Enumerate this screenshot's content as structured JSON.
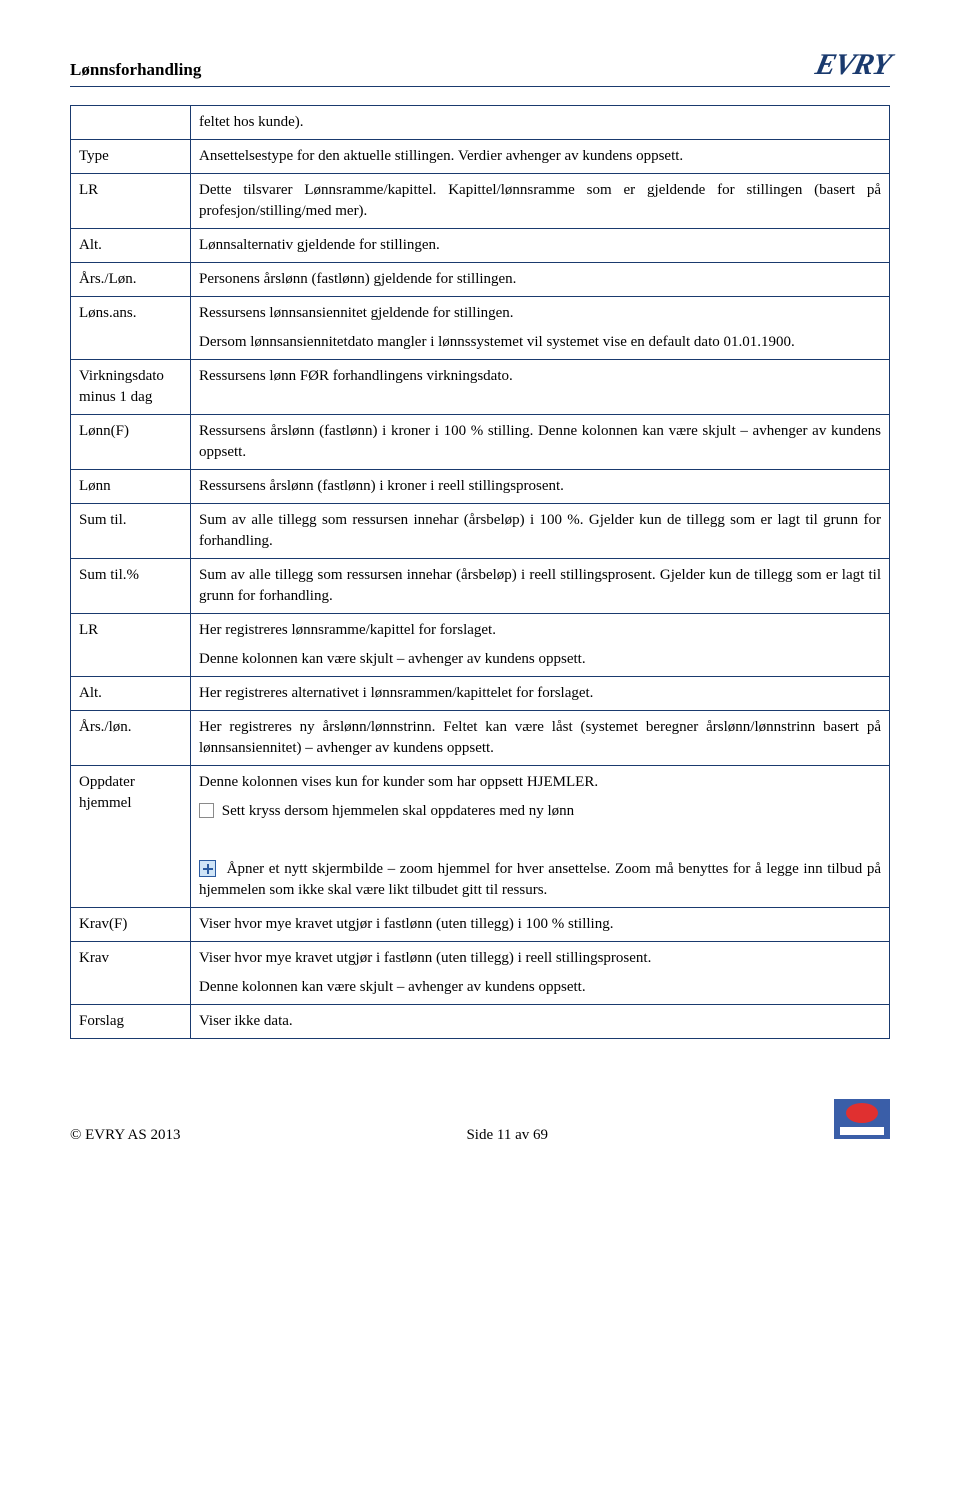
{
  "header": {
    "title": "Lønnsforhandling",
    "logo_text": "EVRY"
  },
  "intro_note": "feltet hos kunde).",
  "rows": [
    {
      "term": "Type",
      "paras": [
        "Ansettelsestype for den aktuelle stillingen. Verdier avhenger av kundens oppsett."
      ]
    },
    {
      "term": "LR",
      "paras": [
        "Dette tilsvarer Lønnsramme/kapittel. Kapittel/lønnsramme som er gjeldende for stillingen (basert på profesjon/stilling/med mer)."
      ]
    },
    {
      "term": "Alt.",
      "paras": [
        "Lønnsalternativ gjeldende for stillingen."
      ]
    },
    {
      "term": "Års./Løn.",
      "paras": [
        "Personens årslønn (fastlønn) gjeldende for stillingen."
      ]
    },
    {
      "term": "Løns.ans.",
      "paras": [
        "Ressursens lønnsansiennitet gjeldende for stillingen.",
        "Dersom lønnsansiennitetdato mangler i lønnssystemet vil systemet vise en default dato 01.01.1900."
      ]
    },
    {
      "term": "Virkningsdato minus 1 dag",
      "paras": [
        "Ressursens lønn FØR forhandlingens virkningsdato."
      ]
    },
    {
      "term": "Lønn(F)",
      "paras": [
        "Ressursens årslønn (fastlønn) i kroner i 100 % stilling. Denne kolonnen kan være skjult – avhenger av kundens oppsett."
      ]
    },
    {
      "term": "Lønn",
      "paras": [
        "Ressursens årslønn (fastlønn) i kroner i reell stillingsprosent."
      ]
    },
    {
      "term": "Sum til.",
      "paras": [
        "Sum av alle tillegg som ressursen innehar (årsbeløp) i 100 %. Gjelder kun de tillegg som er lagt til grunn for forhandling."
      ]
    },
    {
      "term": "Sum til.%",
      "paras": [
        "Sum av alle tillegg som ressursen innehar (årsbeløp) i reell stillingsprosent. Gjelder kun de tillegg som er lagt til grunn for forhandling."
      ]
    },
    {
      "term": "LR",
      "paras": [
        "Her registreres lønnsramme/kapittel for forslaget.",
        "Denne kolonnen kan være skjult – avhenger av kundens oppsett."
      ]
    },
    {
      "term": "Alt.",
      "paras": [
        "Her registreres alternativet i lønnsrammen/kapittelet for forslaget."
      ]
    },
    {
      "term": "Års./løn.",
      "paras": [
        "Her registreres ny årslønn/lønnstrinn. Feltet kan være låst (systemet beregner årslønn/lønnstrinn basert på lønnsansiennitet) – avhenger av kundens oppsett."
      ]
    },
    {
      "term": "Oppdater hjemmel",
      "paras": [
        "Denne kolonnen vises kun for kunder som har oppsett HJEMLER.",
        {
          "icon": "checkbox",
          "text": "Sett kryss dersom hjemmelen skal oppdateres med ny lønn"
        },
        "",
        {
          "icon": "plus",
          "text": "Åpner et nytt skjermbilde – zoom hjemmel for hver ansettelse. Zoom må benyttes for å legge inn tilbud på hjemmelen som ikke skal være likt tilbudet gitt til ressurs."
        }
      ]
    },
    {
      "term": "Krav(F)",
      "paras": [
        "Viser hvor mye kravet utgjør i fastlønn (uten tillegg) i 100 % stilling."
      ]
    },
    {
      "term": "Krav",
      "paras": [
        "Viser hvor mye kravet utgjør i fastlønn (uten tillegg) i reell stillingsprosent.",
        "Denne kolonnen kan være skjult – avhenger av kundens oppsett."
      ]
    },
    {
      "term": "Forslag",
      "paras": [
        "Viser ikke data."
      ]
    }
  ],
  "footer": {
    "copyright": "© EVRY AS 2013",
    "page": "Side 11 av 69"
  },
  "colors": {
    "border": "#1a3a6e",
    "text": "#000000",
    "bg": "#ffffff",
    "plus_bg": "#cfe4f7",
    "plus_fg": "#2a5aa0"
  }
}
